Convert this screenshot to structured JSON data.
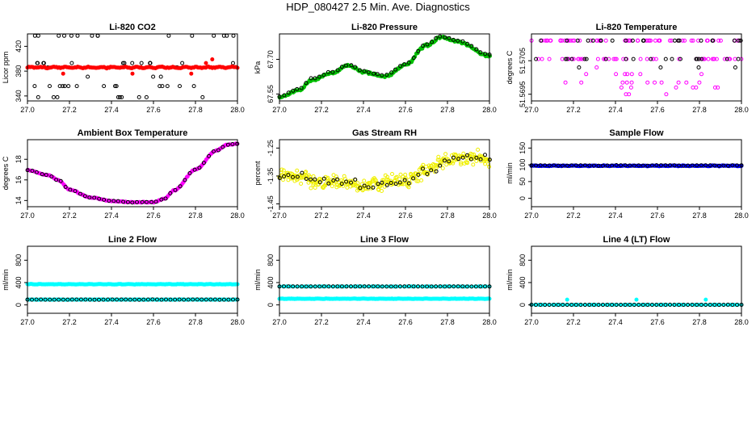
{
  "title": "HDP_080427  2.5 Min. Ave. Diagnostics",
  "chart_data": [
    {
      "type": "scatter",
      "title": "Li-820 CO2",
      "ylabel": "Licor ppm",
      "xlim": [
        27.0,
        28.0
      ],
      "ylim": [
        332,
        440
      ],
      "xticks": [
        27.0,
        27.2,
        27.4,
        27.6,
        27.8,
        28.0
      ],
      "xtick_labels": [
        "27.0",
        "27.2",
        "27.4",
        "27.6",
        "27.8",
        "28.0"
      ],
      "yticks": [
        340,
        380,
        420
      ],
      "ytick_labels": [
        "340",
        "380",
        "420"
      ],
      "series": [
        {
          "name": "black",
          "color": "#000000",
          "filled": false,
          "kind": "levels",
          "levels": [
            338,
            356,
            371,
            386,
            393,
            437
          ],
          "weights": [
            5,
            6,
            4,
            2,
            7,
            6
          ],
          "n": 60
        },
        {
          "name": "red",
          "color": "#ff0000",
          "filled": true,
          "kind": "line",
          "base": 386,
          "amp": 0.8,
          "noise": 1.2,
          "n": 160,
          "extra_x": [
            27.17,
            27.5,
            27.78,
            27.85,
            27.88
          ],
          "extra_y": [
            376,
            376,
            376,
            393,
            399
          ]
        }
      ]
    },
    {
      "type": "scatter",
      "title": "Li-820 Pressure",
      "ylabel": "kPa",
      "xlim": [
        27.0,
        28.0
      ],
      "ylim": [
        67.52,
        67.81
      ],
      "xticks": [
        27.0,
        27.2,
        27.4,
        27.6,
        27.8,
        28.0
      ],
      "xtick_labels": [
        "27.0",
        "27.2",
        "27.4",
        "27.6",
        "27.8",
        "28.0"
      ],
      "yticks": [
        67.55,
        67.7
      ],
      "ytick_labels": [
        "67.55",
        "67.70"
      ],
      "series": [
        {
          "name": "green",
          "color": "#00c000",
          "filled": true,
          "kind": "curve",
          "cx": [
            27.0,
            27.1,
            27.15,
            27.25,
            27.33,
            27.4,
            27.5,
            27.6,
            27.7,
            27.77,
            27.85,
            28.0
          ],
          "cy": [
            67.535,
            67.57,
            67.61,
            67.64,
            67.675,
            67.645,
            67.625,
            67.675,
            67.76,
            67.795,
            67.775,
            67.715
          ],
          "noise": 0.007,
          "n": 170
        },
        {
          "name": "black",
          "color": "#000000",
          "filled": false,
          "kind": "curve",
          "cx": [
            27.0,
            27.1,
            27.15,
            27.25,
            27.33,
            27.4,
            27.5,
            27.6,
            27.7,
            27.77,
            27.85,
            28.0
          ],
          "cy": [
            67.54,
            67.575,
            67.615,
            67.645,
            67.678,
            67.648,
            67.63,
            67.68,
            67.765,
            67.8,
            67.78,
            67.72
          ],
          "noise": 0.004,
          "n": 48
        }
      ]
    },
    {
      "type": "scatter",
      "title": "Li-820 Temperature",
      "ylabel": "degrees C",
      "xlim": [
        27.0,
        28.0
      ],
      "ylim": [
        51.5693,
        51.5713
      ],
      "xticks": [
        27.0,
        27.2,
        27.4,
        27.6,
        27.8,
        28.0
      ],
      "xtick_labels": [
        "27.0",
        "27.2",
        "27.4",
        "27.6",
        "27.8",
        "28.0"
      ],
      "yticks": [
        51.5695,
        51.5705
      ],
      "ytick_labels": [
        "51.5695",
        "51.5705"
      ],
      "series": [
        {
          "name": "magenta",
          "color": "#ff00ff",
          "filled": false,
          "kind": "levels",
          "levels": [
            51.5711,
            51.57055,
            51.5703,
            51.5701,
            51.56985,
            51.5697,
            51.5695
          ],
          "weights": [
            14,
            8,
            1,
            2,
            3,
            1,
            1
          ],
          "n": 130,
          "xrange": [
            27.0,
            28.0
          ]
        },
        {
          "name": "black",
          "color": "#000000",
          "filled": false,
          "kind": "levels",
          "levels": [
            51.5711,
            51.57055,
            51.5703
          ],
          "weights": [
            10,
            6,
            1
          ],
          "n": 45,
          "xrange": [
            27.0,
            28.0
          ]
        }
      ]
    },
    {
      "type": "scatter",
      "title": "Ambient Box Temperature",
      "ylabel": "degrees C",
      "xlim": [
        27.0,
        28.0
      ],
      "ylim": [
        13.4,
        19.9
      ],
      "xticks": [
        27.0,
        27.2,
        27.4,
        27.6,
        27.8,
        28.0
      ],
      "xtick_labels": [
        "27.0",
        "27.2",
        "27.4",
        "27.6",
        "27.8",
        "28.0"
      ],
      "yticks": [
        14,
        16,
        18
      ],
      "ytick_labels": [
        "14",
        "16",
        "18"
      ],
      "series": [
        {
          "name": "magenta",
          "color": "#ff00ff",
          "filled": true,
          "kind": "curve",
          "cx": [
            27.0,
            27.1,
            27.15,
            27.2,
            27.3,
            27.4,
            27.5,
            27.6,
            27.65,
            27.7,
            27.8,
            27.9,
            27.95,
            28.0
          ],
          "cy": [
            16.95,
            16.45,
            15.95,
            15.05,
            14.3,
            13.95,
            13.82,
            13.85,
            14.15,
            15.0,
            17.0,
            18.85,
            19.4,
            19.5
          ],
          "noise": 0.06,
          "n": 170
        },
        {
          "name": "black",
          "color": "#000000",
          "filled": false,
          "kind": "curve",
          "cx": [
            27.0,
            27.1,
            27.15,
            27.2,
            27.3,
            27.4,
            27.5,
            27.6,
            27.65,
            27.7,
            27.8,
            27.9,
            27.95,
            28.0
          ],
          "cy": [
            16.95,
            16.45,
            15.95,
            15.05,
            14.3,
            13.95,
            13.82,
            13.85,
            14.15,
            15.0,
            17.0,
            18.85,
            19.4,
            19.5
          ],
          "noise": 0.04,
          "n": 45
        }
      ]
    },
    {
      "type": "scatter",
      "title": "Gas Stream RH",
      "ylabel": "percent",
      "xlim": [
        27.0,
        28.0
      ],
      "ylim": [
        -1.46,
        -1.22
      ],
      "xticks": [
        27.0,
        27.2,
        27.4,
        27.6,
        27.8,
        28.0
      ],
      "xtick_labels": [
        "27.0",
        "27.2",
        "27.4",
        "27.6",
        "27.8",
        "28.0"
      ],
      "yticks": [
        -1.45,
        -1.35,
        -1.25
      ],
      "ytick_labels": [
        "-1.45",
        "-1.35",
        "-1.25"
      ],
      "series": [
        {
          "name": "yellow",
          "color": "#f0f000",
          "filled": false,
          "kind": "curve",
          "cx": [
            27.0,
            27.2,
            27.4,
            27.6,
            27.7,
            27.8,
            27.9,
            28.0
          ],
          "cy": [
            -1.345,
            -1.37,
            -1.385,
            -1.365,
            -1.33,
            -1.295,
            -1.28,
            -1.29
          ],
          "noise": 0.035,
          "n": 320
        },
        {
          "name": "black",
          "color": "#000000",
          "filled": false,
          "kind": "curve",
          "cx": [
            27.0,
            27.2,
            27.4,
            27.6,
            27.7,
            27.8,
            27.9,
            28.0
          ],
          "cy": [
            -1.345,
            -1.37,
            -1.385,
            -1.365,
            -1.33,
            -1.295,
            -1.28,
            -1.29
          ],
          "noise": 0.028,
          "n": 48
        }
      ]
    },
    {
      "type": "scatter",
      "title": "Sample Flow",
      "ylabel": "ml/min",
      "xlim": [
        27.0,
        28.0
      ],
      "ylim": [
        -25,
        175
      ],
      "xticks": [
        27.0,
        27.2,
        27.4,
        27.6,
        27.8,
        28.0
      ],
      "xtick_labels": [
        "27.0",
        "27.2",
        "27.4",
        "27.6",
        "27.8",
        "28.0"
      ],
      "yticks": [
        0,
        50,
        100,
        150
      ],
      "ytick_labels": [
        "0",
        "50",
        "100",
        "150"
      ],
      "series": [
        {
          "name": "blue",
          "color": "#0000ff",
          "filled": true,
          "kind": "line",
          "base": 97,
          "amp": 0.5,
          "noise": 1.2,
          "n": 190
        },
        {
          "name": "black",
          "color": "#000000",
          "filled": false,
          "kind": "line",
          "base": 98,
          "amp": 0.5,
          "noise": 1.0,
          "n": 48
        }
      ]
    },
    {
      "type": "scatter",
      "title": "Line 2 Flow",
      "ylabel": "ml/min",
      "xlim": [
        27.0,
        28.0
      ],
      "ylim": [
        -150,
        1050
      ],
      "xticks": [
        27.0,
        27.2,
        27.4,
        27.6,
        27.8,
        28.0
      ],
      "xtick_labels": [
        "27.0",
        "27.2",
        "27.4",
        "27.6",
        "27.8",
        "28.0"
      ],
      "yticks": [
        0,
        400,
        800
      ],
      "ytick_labels": [
        "0",
        "400",
        "800"
      ],
      "series": [
        {
          "name": "cyan-upper",
          "color": "#00ffff",
          "filled": true,
          "kind": "line",
          "base": 370,
          "amp": 3,
          "noise": 5,
          "n": 190
        },
        {
          "name": "cyan-lower",
          "color": "#00ffff",
          "filled": true,
          "kind": "line",
          "base": 95,
          "amp": 1,
          "noise": 3,
          "n": 140
        },
        {
          "name": "black",
          "color": "#000000",
          "filled": false,
          "kind": "line",
          "base": 95,
          "amp": 1,
          "noise": 2,
          "n": 48
        }
      ]
    },
    {
      "type": "scatter",
      "title": "Line 3 Flow",
      "ylabel": "ml/min",
      "xlim": [
        27.0,
        28.0
      ],
      "ylim": [
        -150,
        1050
      ],
      "xticks": [
        27.0,
        27.2,
        27.4,
        27.6,
        27.8,
        28.0
      ],
      "xtick_labels": [
        "27.0",
        "27.2",
        "27.4",
        "27.6",
        "27.8",
        "28.0"
      ],
      "yticks": [
        0,
        400,
        800
      ],
      "ytick_labels": [
        "0",
        "400",
        "800"
      ],
      "series": [
        {
          "name": "cyan-lower",
          "color": "#00ffff",
          "filled": true,
          "kind": "line",
          "base": 110,
          "amp": 2,
          "noise": 4,
          "n": 210
        },
        {
          "name": "cyan-upper",
          "color": "#00ffff",
          "filled": true,
          "kind": "line",
          "base": 330,
          "amp": 1,
          "noise": 3,
          "n": 60
        },
        {
          "name": "black",
          "color": "#000000",
          "filled": false,
          "kind": "line",
          "base": 330,
          "amp": 1,
          "noise": 2,
          "n": 48
        }
      ]
    },
    {
      "type": "scatter",
      "title": "Line 4 (LT) Flow",
      "ylabel": "ml/min",
      "xlim": [
        27.0,
        28.0
      ],
      "ylim": [
        -150,
        1050
      ],
      "xticks": [
        27.0,
        27.2,
        27.4,
        27.6,
        27.8,
        28.0
      ],
      "xtick_labels": [
        "27.0",
        "27.2",
        "27.4",
        "27.6",
        "27.8",
        "28.0"
      ],
      "yticks": [
        0,
        400,
        800
      ],
      "ytick_labels": [
        "0",
        "400",
        "800"
      ],
      "series": [
        {
          "name": "cyan",
          "color": "#00ffff",
          "filled": true,
          "kind": "line",
          "base": 2,
          "amp": 0,
          "noise": 1,
          "n": 60,
          "extra_x": [
            27.17,
            27.5,
            27.83
          ],
          "extra_y": [
            95,
            95,
            95
          ]
        },
        {
          "name": "black",
          "color": "#000000",
          "filled": false,
          "kind": "line",
          "base": 2,
          "amp": 0,
          "noise": 1,
          "n": 48
        }
      ]
    }
  ]
}
